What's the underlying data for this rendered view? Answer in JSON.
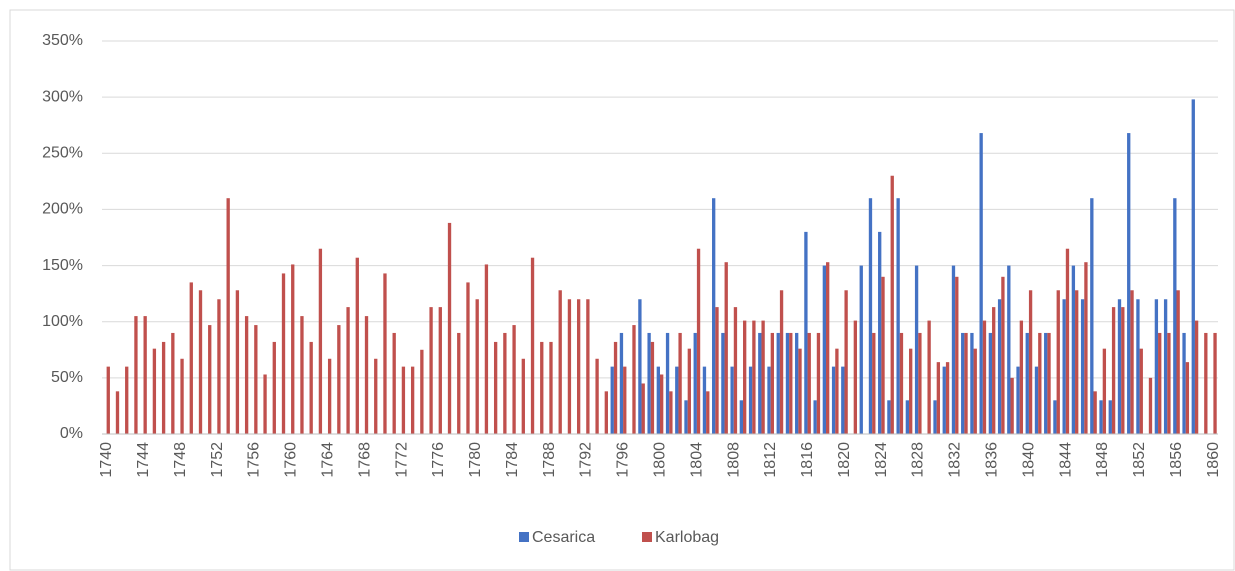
{
  "chart_data": {
    "type": "bar",
    "categories": [
      1740,
      null,
      null,
      null,
      1744,
      null,
      null,
      null,
      1748,
      null,
      null,
      null,
      1752,
      null,
      null,
      null,
      1756,
      null,
      null,
      null,
      1760,
      null,
      null,
      null,
      1764,
      null,
      null,
      null,
      1768,
      null,
      null,
      null,
      1772,
      null,
      null,
      null,
      1776,
      null,
      null,
      null,
      1780,
      null,
      null,
      null,
      1784,
      null,
      null,
      null,
      1788,
      null,
      null,
      null,
      1792,
      null,
      null,
      null,
      1796,
      null,
      null,
      null,
      1800,
      null,
      null,
      null,
      1804,
      null,
      null,
      null,
      1808,
      null,
      null,
      null,
      1812,
      null,
      null,
      null,
      1816,
      null,
      null,
      null,
      1820,
      null,
      null,
      null,
      1824,
      null,
      null,
      null,
      1828,
      null,
      null,
      null,
      1832,
      null,
      null,
      null,
      1836,
      null,
      null,
      null,
      1840,
      null,
      null,
      null,
      1844,
      null,
      null,
      null,
      1848,
      null,
      null,
      null,
      1852,
      null,
      null,
      null,
      1856,
      null,
      null,
      null,
      1860
    ],
    "series": [
      {
        "name": "Cesarica",
        "color": "#4472c4",
        "values": [
          null,
          null,
          null,
          null,
          null,
          null,
          null,
          null,
          null,
          null,
          null,
          null,
          null,
          null,
          null,
          null,
          null,
          null,
          null,
          null,
          null,
          null,
          null,
          null,
          null,
          null,
          null,
          null,
          null,
          null,
          null,
          null,
          null,
          null,
          null,
          null,
          null,
          null,
          null,
          null,
          null,
          null,
          null,
          null,
          null,
          null,
          null,
          null,
          null,
          null,
          null,
          null,
          null,
          null,
          null,
          60,
          90,
          null,
          120,
          90,
          60,
          90,
          60,
          30,
          90,
          60,
          210,
          90,
          60,
          30,
          60,
          90,
          60,
          90,
          90,
          90,
          180,
          30,
          150,
          60,
          60,
          null,
          150,
          210,
          180,
          30,
          210,
          30,
          150,
          null,
          30,
          60,
          150,
          90,
          90,
          268,
          90,
          120,
          150,
          60,
          90,
          60,
          90,
          30,
          120,
          150,
          120,
          210,
          30,
          30,
          120,
          268,
          120,
          null,
          120,
          120,
          210,
          90,
          298,
          null,
          null
        ]
      },
      {
        "name": "Karlobag",
        "color": "#c0504d",
        "values": [
          60,
          38,
          60,
          105,
          105,
          76,
          82,
          90,
          67,
          135,
          128,
          97,
          120,
          210,
          128,
          105,
          97,
          53,
          82,
          143,
          151,
          105,
          82,
          165,
          67,
          97,
          113,
          157,
          105,
          67,
          143,
          90,
          60,
          60,
          75,
          113,
          113,
          188,
          90,
          135,
          120,
          151,
          82,
          90,
          97,
          67,
          157,
          82,
          82,
          128,
          120,
          120,
          120,
          67,
          38,
          82,
          60,
          97,
          45,
          82,
          53,
          38,
          90,
          76,
          165,
          38,
          113,
          153,
          113,
          101,
          101,
          101,
          90,
          128,
          90,
          76,
          90,
          90,
          153,
          76,
          128,
          101,
          null,
          90,
          140,
          230,
          90,
          76,
          90,
          101,
          64,
          64,
          140,
          90,
          76,
          101,
          113,
          140,
          50,
          101,
          128,
          90,
          90,
          128,
          165,
          128,
          153,
          38,
          76,
          113,
          113,
          128,
          76,
          50,
          90,
          90,
          128,
          64,
          101,
          90,
          90
        ]
      }
    ],
    "ylim": [
      0,
      350
    ],
    "yticks": [
      {
        "value": 0,
        "label": "0%"
      },
      {
        "value": 50,
        "label": "50%"
      },
      {
        "value": 100,
        "label": "100%"
      },
      {
        "value": 150,
        "label": "150%"
      },
      {
        "value": 200,
        "label": "200%"
      },
      {
        "value": 250,
        "label": "250%"
      },
      {
        "value": 300,
        "label": "300%"
      },
      {
        "value": 350,
        "label": "350%"
      }
    ],
    "grid": true,
    "legend": "bottom"
  }
}
